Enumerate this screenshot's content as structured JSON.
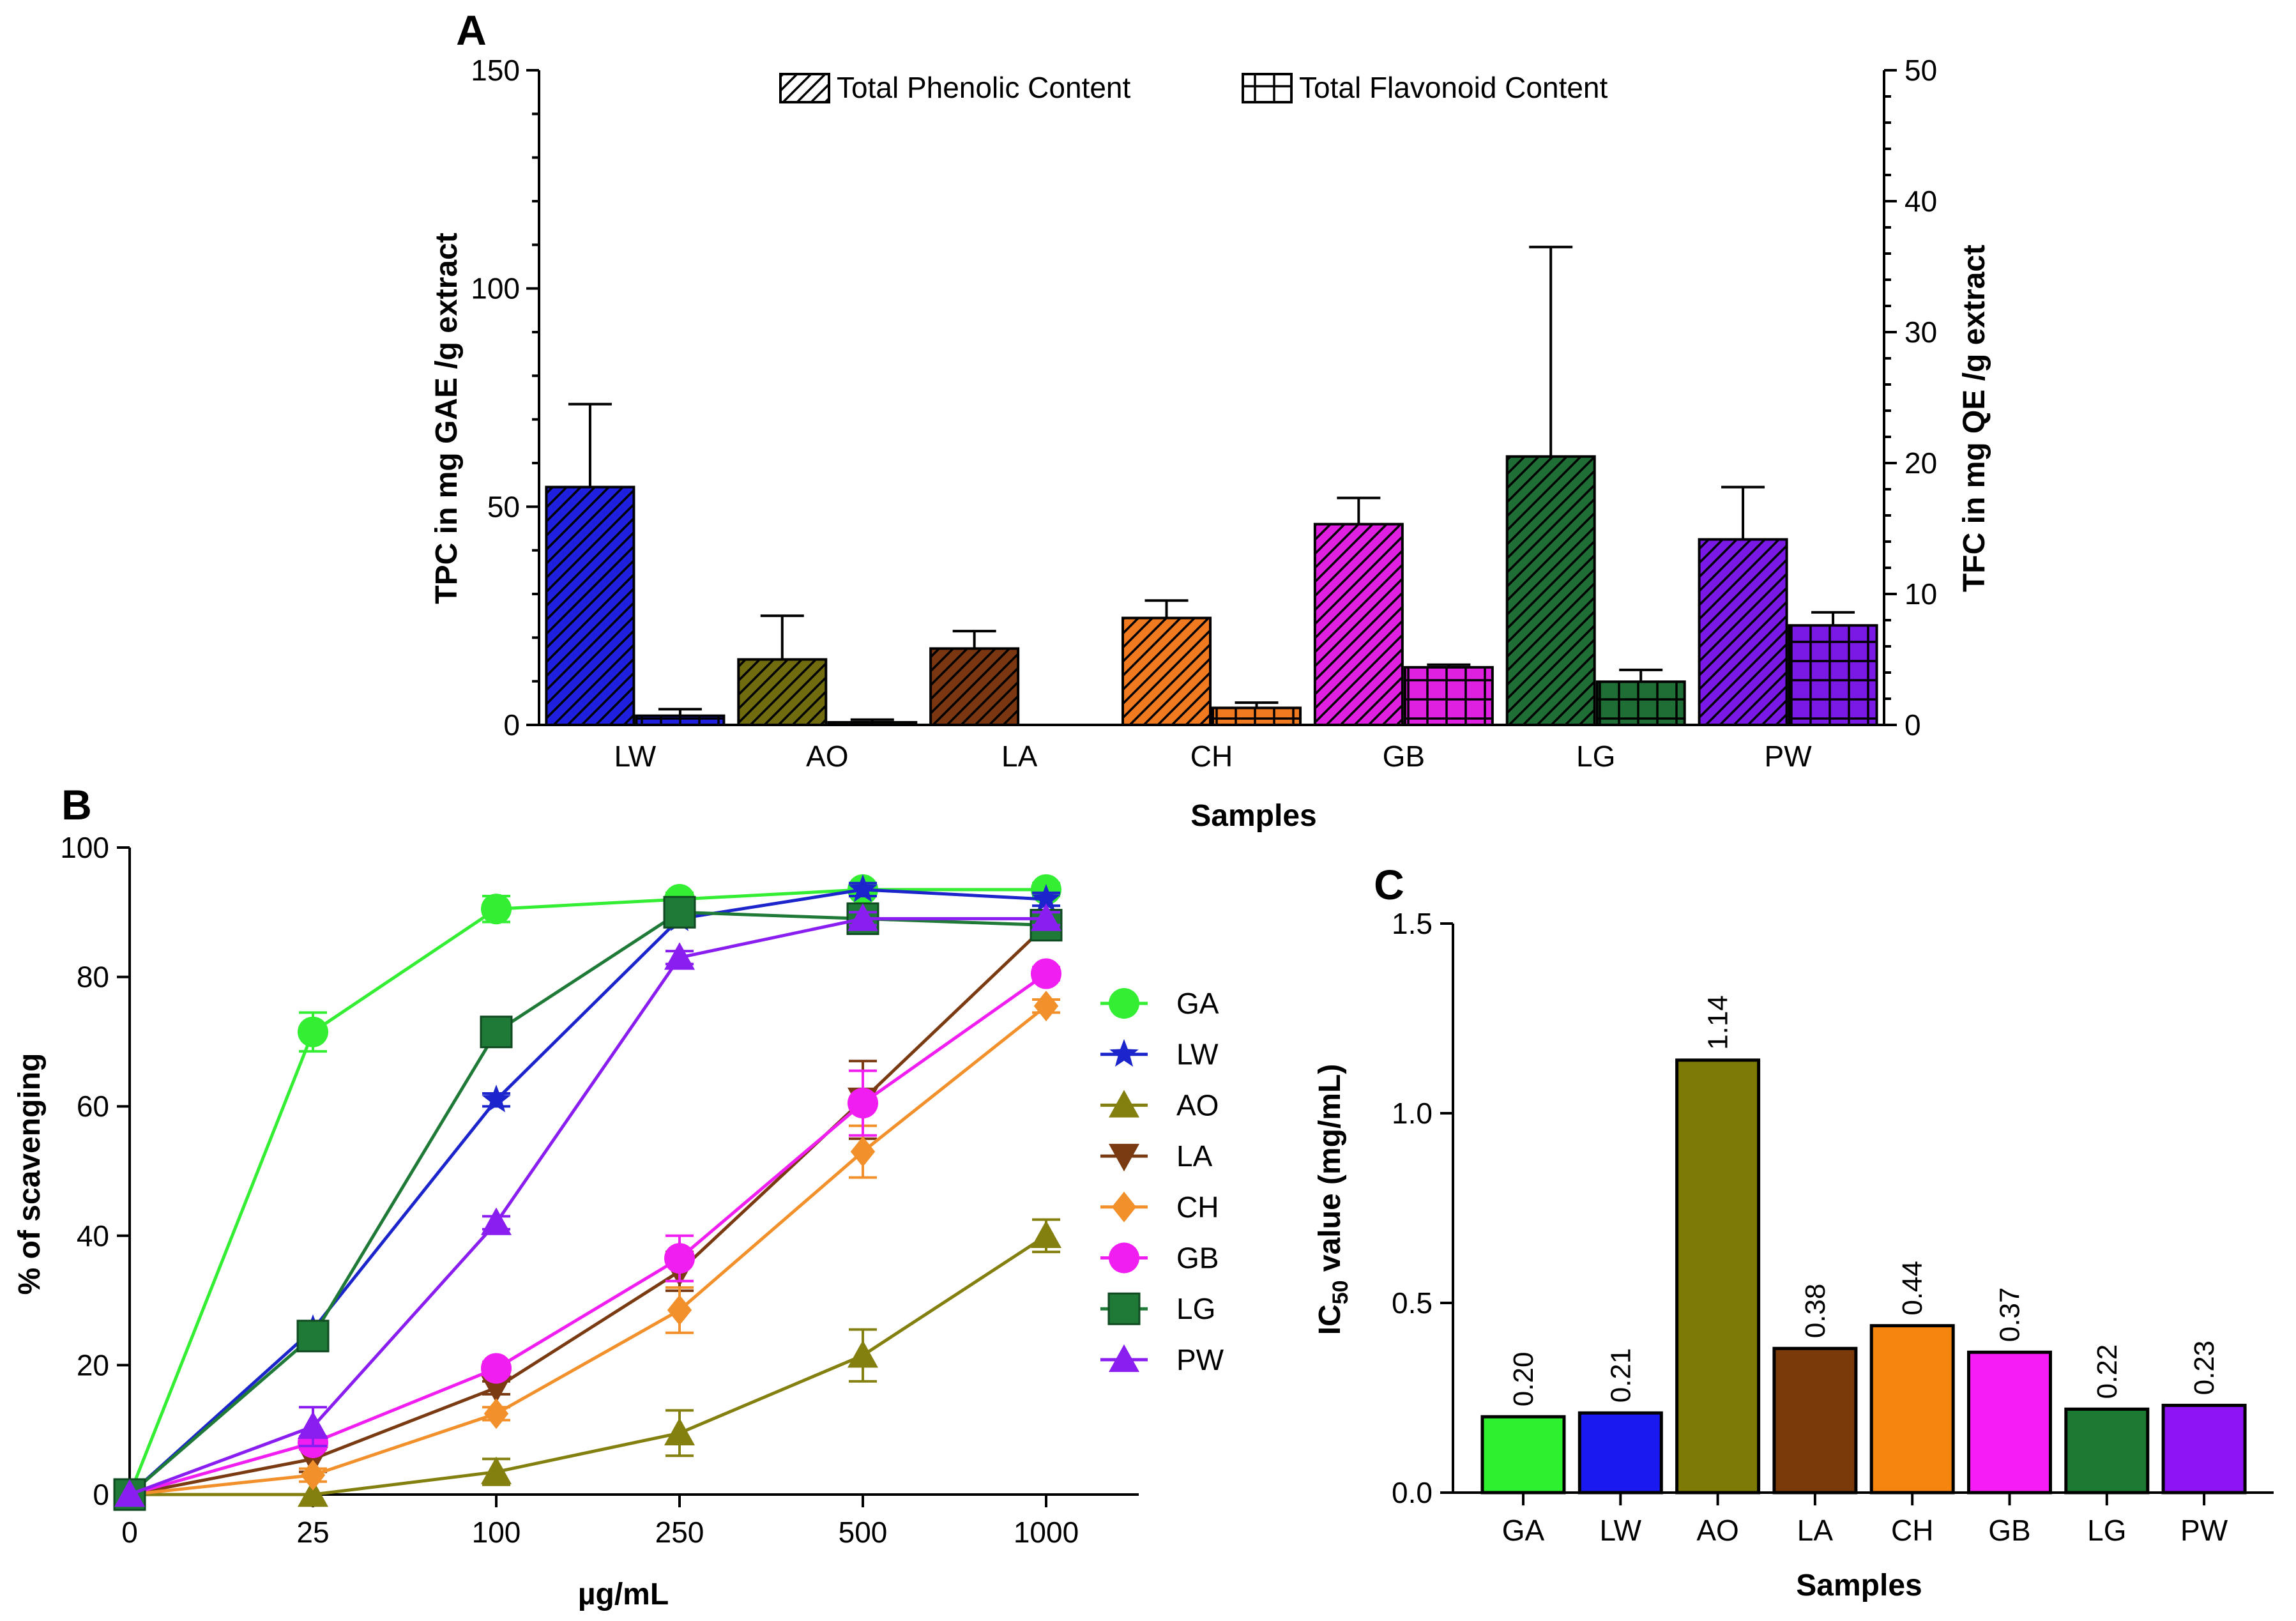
{
  "chart_data": [
    {
      "panel": "A",
      "type": "bar",
      "xlabel": "Samples",
      "ylabel": "TPC in mg GAE /g extract",
      "y2label": "TFC in mg QE /g extract",
      "categories": [
        "LW",
        "AO",
        "LA",
        "CH",
        "GB",
        "LG",
        "PW"
      ],
      "colors": [
        "#1f1fe0",
        "#6f6b0e",
        "#7a3610",
        "#f07a20",
        "#e020e0",
        "#1f6e36",
        "#7a18e6"
      ],
      "ylim": [
        0,
        150
      ],
      "y2lim": [
        0,
        50
      ],
      "yticks": [
        0,
        50,
        100,
        150
      ],
      "y2ticks": [
        0,
        10,
        20,
        30,
        40,
        50
      ],
      "series": [
        {
          "name": "Total Phenolic Content",
          "axis": "left",
          "pattern": "diagonal-hatch",
          "values": [
            54.5,
            15,
            17.5,
            24.5,
            46,
            61.5,
            42.5
          ],
          "errors": [
            19,
            10,
            4,
            4,
            6,
            48,
            12
          ]
        },
        {
          "name": "Total Flavonoid Content",
          "axis": "right",
          "pattern": "crosshatch",
          "values": [
            0.7,
            0.2,
            0,
            1.3,
            4.4,
            3.3,
            7.6
          ],
          "errors": [
            0.5,
            0.2,
            0,
            0.4,
            0.2,
            0.9,
            1.0
          ]
        }
      ]
    },
    {
      "panel": "B",
      "type": "line",
      "xlabel": "µg/mL",
      "ylabel": "% of scavenging",
      "x": [
        "0",
        "25",
        "100",
        "250",
        "500",
        "1000"
      ],
      "ylim": [
        0,
        100
      ],
      "yticks": [
        0,
        20,
        40,
        60,
        80,
        100
      ],
      "series": [
        {
          "name": "GA",
          "color": "#33ee33",
          "marker": "circle",
          "values": [
            0,
            71.5,
            90.5,
            92,
            93.5,
            93.5
          ],
          "errors": [
            0,
            3,
            2,
            1,
            1,
            1
          ]
        },
        {
          "name": "LW",
          "color": "#1c25cc",
          "marker": "star",
          "values": [
            0,
            25.5,
            61,
            89,
            93.5,
            92
          ],
          "errors": [
            0,
            1,
            1,
            1,
            1,
            1
          ]
        },
        {
          "name": "AO",
          "color": "#848010",
          "marker": "triangle-up",
          "values": [
            0,
            0,
            3.5,
            9.5,
            21.5,
            40
          ],
          "errors": [
            0,
            0.5,
            2,
            3.5,
            4,
            2.5
          ]
        },
        {
          "name": "LA",
          "color": "#7a3a12",
          "marker": "triangle-down",
          "values": [
            0,
            5.5,
            16.5,
            34.5,
            61,
            88
          ],
          "errors": [
            0,
            2,
            1,
            3,
            6,
            1
          ]
        },
        {
          "name": "CH",
          "color": "#f2902c",
          "marker": "diamond",
          "values": [
            0,
            3,
            12.5,
            28.5,
            53,
            75.5
          ],
          "errors": [
            0,
            1,
            1,
            3.5,
            4,
            1
          ]
        },
        {
          "name": "GB",
          "color": "#f01ef0",
          "marker": "circle",
          "values": [
            0,
            8,
            19.5,
            36.5,
            60.5,
            80.5
          ],
          "errors": [
            0,
            1,
            1,
            3.5,
            5,
            1
          ]
        },
        {
          "name": "LG",
          "color": "#1f7a38",
          "marker": "square",
          "values": [
            0,
            24.5,
            71.5,
            90,
            89,
            88
          ],
          "errors": [
            0,
            1,
            1,
            1,
            1,
            1
          ]
        },
        {
          "name": "PW",
          "color": "#8a1ef0",
          "marker": "triangle-up",
          "values": [
            0,
            10.5,
            42,
            83,
            89,
            89
          ],
          "errors": [
            0,
            3,
            1,
            1,
            1,
            1
          ]
        }
      ]
    },
    {
      "panel": "C",
      "type": "bar",
      "xlabel": "Samples",
      "ylabel_prefix": "IC",
      "ylabel_sub": "50",
      "ylabel_suffix": " value (mg/mL)",
      "categories": [
        "GA",
        "LW",
        "AO",
        "LA",
        "CH",
        "GB",
        "LG",
        "PW"
      ],
      "values": [
        0.2,
        0.21,
        1.14,
        0.38,
        0.44,
        0.37,
        0.22,
        0.23
      ],
      "labels": [
        "0.20",
        "0.21",
        "1.14",
        "0.38",
        "0.44",
        "0.37",
        "0.22",
        "0.23"
      ],
      "colors": [
        "#2ef02e",
        "#1a1af0",
        "#7d7a05",
        "#7a3a0a",
        "#f5850f",
        "#f51cf5",
        "#1d7a33",
        "#8f14f5"
      ],
      "ylim": [
        0,
        1.5
      ],
      "yticks": [
        "0.0",
        "0.5",
        "1.0",
        "1.5"
      ]
    }
  ]
}
